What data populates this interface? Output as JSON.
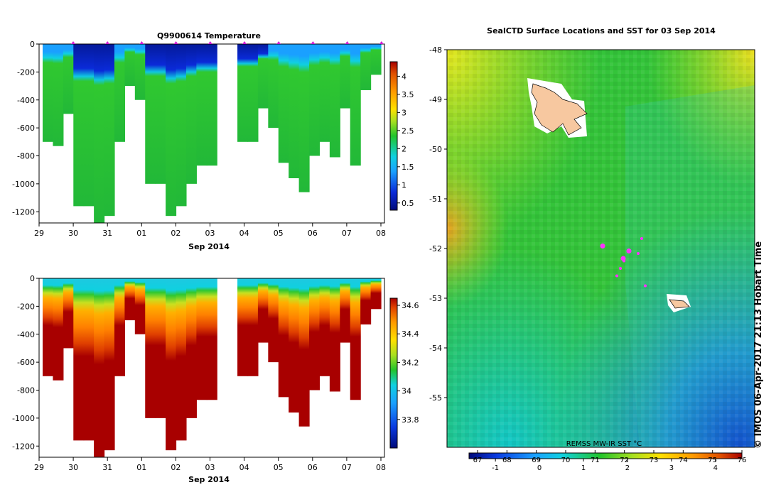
{
  "chart_data": [
    {
      "type": "heatmap",
      "title": "Q9900614  Temperature",
      "xlabel": "Sep 2014",
      "x_ticks": [
        "29",
        "30",
        "31",
        "01",
        "02",
        "03",
        "04",
        "05",
        "06",
        "07",
        "08"
      ],
      "y_ticks": [
        "0",
        "-200",
        "-400",
        "-600",
        "-800",
        "-1000",
        "-1200"
      ],
      "ylim": [
        -1280,
        0
      ],
      "colorbar_ticks": [
        "0.5",
        "1",
        "1.5",
        "2",
        "2.5",
        "3",
        "3.5",
        "4"
      ],
      "colorbar_range": [
        0.3,
        4.4
      ],
      "profile_depths": [
        -700,
        -730,
        -500,
        -1160,
        -1160,
        -1280,
        -1230,
        -700,
        -300,
        -400,
        -1000,
        -1000,
        -1230,
        -1160,
        -1000,
        -870,
        -870,
        0,
        0,
        -700,
        -700,
        -460,
        -600,
        -850,
        -960,
        -1060,
        -800,
        -700,
        -810,
        -460,
        -870,
        -330,
        -220
      ]
    },
    {
      "type": "heatmap",
      "title": "",
      "xlabel": "Sep 2014",
      "x_ticks": [
        "29",
        "30",
        "31",
        "01",
        "02",
        "03",
        "04",
        "05",
        "06",
        "07",
        "08"
      ],
      "y_ticks": [
        "0",
        "-200",
        "-400",
        "-600",
        "-800",
        "-1000",
        "-1200"
      ],
      "ylim": [
        -1280,
        0
      ],
      "colorbar_ticks": [
        "33.8",
        "34",
        "34.2",
        "34.4",
        "34.6"
      ],
      "colorbar_range": [
        33.6,
        34.65
      ],
      "profile_depths": [
        -700,
        -730,
        -500,
        -1160,
        -1160,
        -1280,
        -1230,
        -700,
        -300,
        -400,
        -1000,
        -1000,
        -1230,
        -1160,
        -1000,
        -870,
        -870,
        0,
        0,
        -700,
        -700,
        -460,
        -600,
        -850,
        -960,
        -1060,
        -800,
        -700,
        -810,
        -460,
        -870,
        -330,
        -220
      ]
    },
    {
      "type": "heatmap",
      "title": "SealCTD Surface Locations and SST for 03 Sep 2014",
      "y_ticks": [
        "-48",
        "-49",
        "-50",
        "-51",
        "-52",
        "-53",
        "-54",
        "-55"
      ],
      "ylim": [
        -56,
        -48
      ],
      "colorbar_label": "REMSS MW-IR SST °C",
      "colorbar_top_ticks": [
        "67",
        "68",
        "69",
        "70",
        "71",
        "72",
        "73",
        "74",
        "75",
        "76"
      ],
      "colorbar_bottom_ticks": [
        "-1",
        "0",
        "1",
        "2",
        "3",
        "4"
      ],
      "colorbar_range": [
        -1.6,
        4.6
      ],
      "seal_locations": [
        {
          "lat": -51.95,
          "rank": 0
        },
        {
          "lat": -52.05,
          "rank": 1
        },
        {
          "lat": -52.2,
          "rank": 2
        },
        {
          "lat": -52.25,
          "rank": 3
        },
        {
          "lat": -52.4,
          "rank": 4
        },
        {
          "lat": -52.55,
          "rank": 5
        },
        {
          "lat": -52.75,
          "rank": 6
        },
        {
          "lat": -51.8,
          "rank": 7
        },
        {
          "lat": -52.1,
          "rank": 8
        }
      ]
    }
  ],
  "credit": "© IMOS 06-Apr-2017 21:13 Hobart Time"
}
